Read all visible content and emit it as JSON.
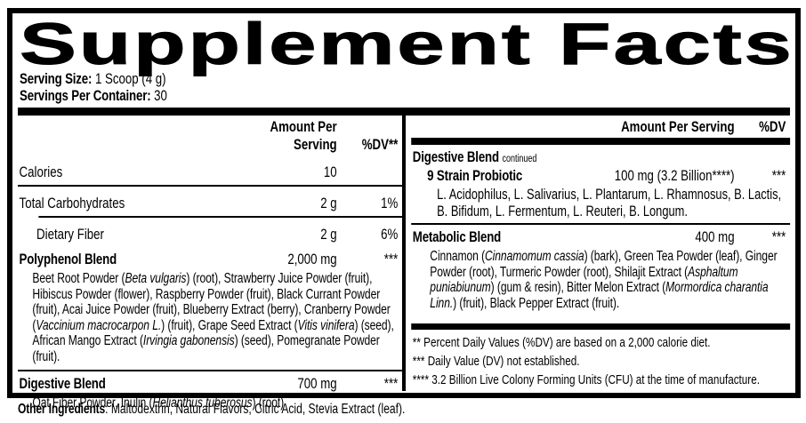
{
  "title": "Supplement Facts",
  "serving": {
    "size_label": "Serving Size:",
    "size_value": " 1 Scoop (4 g)",
    "container_label": "Servings Per Container:",
    "container_value": " 30"
  },
  "left": {
    "header": {
      "amount": "Amount Per Serving",
      "dv": "%DV**"
    },
    "rows": [
      {
        "name": "Calories",
        "amount": "10",
        "dv": ""
      },
      {
        "name": "Total Carbohydrates",
        "amount": "2 g",
        "dv": "1%"
      },
      {
        "name": "Dietary Fiber",
        "amount": "2 g",
        "dv": "6%"
      }
    ],
    "polyphenol": {
      "name": "Polyphenol Blend",
      "amount": "2,000 mg",
      "dv": "***",
      "ingredients": [
        {
          "t": "Beet Root Powder ("
        },
        {
          "t": "Beta vulgaris",
          "i": true
        },
        {
          "t": ") (root), Strawberry Juice Powder (fruit), Hibiscus Powder (flower), Raspberry Powder (fruit), Black Currant Powder (fruit), Acai Juice Powder (fruit), Blueberry Extract (berry), Cranberry Powder ("
        },
        {
          "t": "Vaccinium macrocarpon L.",
          "i": true
        },
        {
          "t": ") (fruit), Grape Seed Extract ("
        },
        {
          "t": "Vitis vinifera",
          "i": true
        },
        {
          "t": ")  (seed), African Mango Extract ("
        },
        {
          "t": "Irvingia gabonensis",
          "i": true
        },
        {
          "t": ") (seed), Pomegranate Powder (fruit)."
        }
      ]
    },
    "digestive": {
      "name": "Digestive Blend",
      "amount": "700 mg",
      "dv": "***",
      "ingredients": [
        {
          "t": "Oat Fiber Powder, Inulin ("
        },
        {
          "t": "Helianthus tuberosus",
          "i": true
        },
        {
          "t": ") (root)"
        }
      ]
    }
  },
  "right": {
    "header": {
      "amount": "Amount Per Serving",
      "dv": "%DV"
    },
    "digestive": {
      "name": "Digestive Blend",
      "continued": "continued",
      "probiotic": {
        "name": "9 Strain Probiotic",
        "amount": "100 mg (3.2 Billion****)",
        "dv": "***",
        "strains": "L. Acidophilus, L. Salivarius, L. Plantarum, L. Rhamnosus, B. Lactis, B. Bifidum, L. Fermentum, L. Reuteri, B. Longum."
      }
    },
    "metabolic": {
      "name": "Metabolic Blend",
      "amount": "400 mg",
      "dv": "***",
      "ingredients": [
        {
          "t": "Cinnamon ("
        },
        {
          "t": "Cinnamomum cassia",
          "i": true
        },
        {
          "t": ") (bark), Green Tea Powder (leaf), Ginger Powder (root), Turmeric Powder (root), Shilajit Extract ("
        },
        {
          "t": "Asphaltum puniabiunum",
          "i": true
        },
        {
          "t": ") (gum & resin), Bitter Melon Extract ("
        },
        {
          "t": "Mormordica charantia Linn.",
          "i": true
        },
        {
          "t": ") (fruit), Black Pepper Extract (fruit)."
        }
      ]
    },
    "footnotes": [
      {
        "stars": "**",
        "text": " Percent Daily Values (%DV) are based on a 2,000 calorie diet."
      },
      {
        "stars": "***",
        "text": " Daily Value (DV) not established."
      },
      {
        "stars": "****",
        "text": " 3.2 Billion Live Colony Forming Units (CFU) at the time of manufacture."
      }
    ]
  },
  "other_ingredients": {
    "label": "Other Ingredients",
    "text": ": Maltodextrin, Natural Flavors, Citric Acid, Stevia Extract (leaf)."
  },
  "colors": {
    "ink": "#000000",
    "paper": "#ffffff"
  }
}
